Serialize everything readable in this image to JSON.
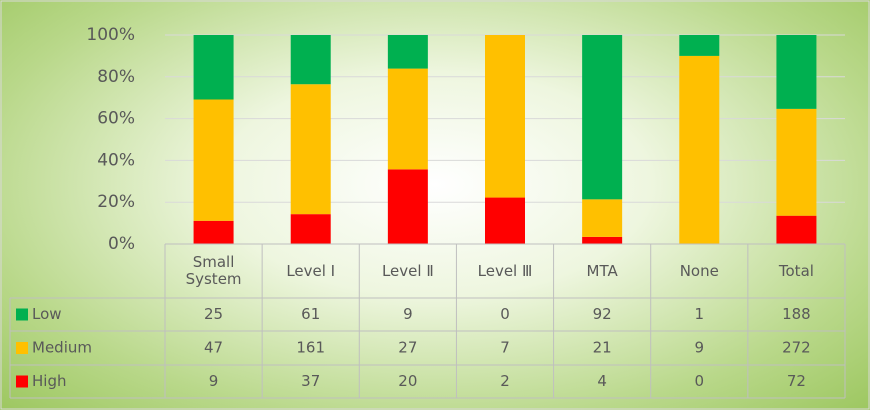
{
  "chart_data": {
    "type": "bar",
    "stacking": "percent",
    "categories": [
      "Small System",
      "Level Ⅰ",
      "Level Ⅱ",
      "Level Ⅲ",
      "MTA",
      "None",
      "Total"
    ],
    "series": [
      {
        "name": "Low",
        "color": "#00b050",
        "values": [
          25,
          61,
          9,
          0,
          92,
          1,
          188
        ]
      },
      {
        "name": "Medium",
        "color": "#ffc000",
        "values": [
          47,
          161,
          27,
          7,
          21,
          9,
          272
        ]
      },
      {
        "name": "High",
        "color": "#ff0000",
        "values": [
          9,
          37,
          20,
          2,
          4,
          0,
          72
        ]
      }
    ],
    "ylim": [
      0,
      100
    ],
    "yticks": [
      {
        "value": 0,
        "label": "0%"
      },
      {
        "value": 20,
        "label": "20%"
      },
      {
        "value": 40,
        "label": "40%"
      },
      {
        "value": 60,
        "label": "60%"
      },
      {
        "value": 80,
        "label": "80%"
      },
      {
        "value": 100,
        "label": "100%"
      }
    ],
    "grid": true,
    "data_table": true
  }
}
